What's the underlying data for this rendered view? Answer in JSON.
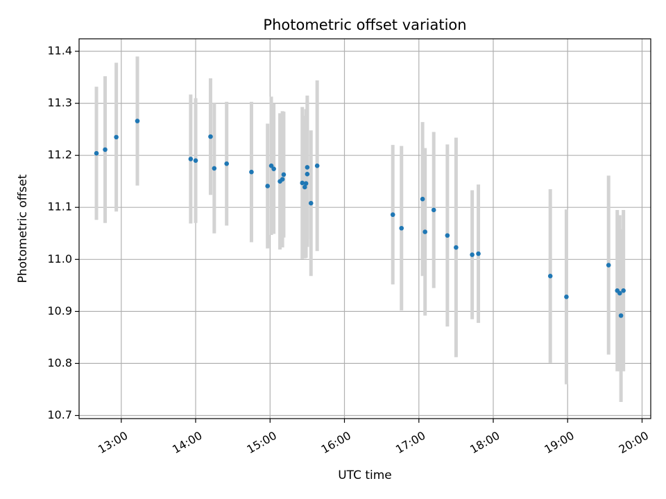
{
  "chart_data": {
    "type": "scatter",
    "title": "Photometric offset variation",
    "xlabel": "UTC time",
    "ylabel": "Photometric offset",
    "x_axis_kind": "time",
    "xlim": [
      "12:26",
      "20:07"
    ],
    "ylim": [
      10.694,
      11.424
    ],
    "grid": true,
    "xticks": [
      "13:00",
      "14:00",
      "15:00",
      "16:00",
      "17:00",
      "18:00",
      "19:00",
      "20:00"
    ],
    "yticks": [
      10.7,
      10.8,
      10.9,
      11.0,
      11.1,
      11.2,
      11.3,
      11.4
    ],
    "ytick_labels": [
      "10.7",
      "10.8",
      "10.9",
      "11.0",
      "11.1",
      "11.2",
      "11.3",
      "11.4"
    ],
    "colors": {
      "point": "#1f77b4",
      "errorbar": "#d3d3d3",
      "grid": "#b0b0b0"
    },
    "points": [
      {
        "x": "12:40",
        "y": 11.204,
        "err": 0.128
      },
      {
        "x": "12:47",
        "y": 11.211,
        "err": 0.141
      },
      {
        "x": "12:56",
        "y": 11.235,
        "err": 0.143
      },
      {
        "x": "13:13",
        "y": 11.266,
        "err": 0.124
      },
      {
        "x": "13:56",
        "y": 11.193,
        "err": 0.124
      },
      {
        "x": "14:00",
        "y": 11.19,
        "err": 0.12
      },
      {
        "x": "14:12",
        "y": 11.236,
        "err": 0.112
      },
      {
        "x": "14:15",
        "y": 11.175,
        "err": 0.125
      },
      {
        "x": "14:25",
        "y": 11.184,
        "err": 0.119
      },
      {
        "x": "14:45",
        "y": 11.168,
        "err": 0.135
      },
      {
        "x": "14:58",
        "y": 11.141,
        "err": 0.12
      },
      {
        "x": "15:01",
        "y": 11.18,
        "err": 0.133
      },
      {
        "x": "15:03",
        "y": 11.174,
        "err": 0.125
      },
      {
        "x": "15:08",
        "y": 11.15,
        "err": 0.131
      },
      {
        "x": "15:10",
        "y": 11.154,
        "err": 0.131
      },
      {
        "x": "15:11",
        "y": 11.163,
        "err": 0.121
      },
      {
        "x": "15:26",
        "y": 11.147,
        "err": 0.146
      },
      {
        "x": "15:28",
        "y": 11.139,
        "err": 0.137
      },
      {
        "x": "15:29",
        "y": 11.146,
        "err": 0.143
      },
      {
        "x": "15:30",
        "y": 11.177,
        "err": 0.138
      },
      {
        "x": "15:30",
        "y": 11.164,
        "err": 0.14
      },
      {
        "x": "15:33",
        "y": 11.108,
        "err": 0.14
      },
      {
        "x": "15:38",
        "y": 11.18,
        "err": 0.164
      },
      {
        "x": "16:39",
        "y": 11.086,
        "err": 0.134
      },
      {
        "x": "16:46",
        "y": 11.06,
        "err": 0.158
      },
      {
        "x": "17:03",
        "y": 11.116,
        "err": 0.148
      },
      {
        "x": "17:05",
        "y": 11.053,
        "err": 0.161
      },
      {
        "x": "17:12",
        "y": 11.095,
        "err": 0.15
      },
      {
        "x": "17:23",
        "y": 11.046,
        "err": 0.175
      },
      {
        "x": "17:30",
        "y": 11.023,
        "err": 0.211
      },
      {
        "x": "17:43",
        "y": 11.009,
        "err": 0.124
      },
      {
        "x": "17:48",
        "y": 11.011,
        "err": 0.133
      },
      {
        "x": "18:46",
        "y": 10.968,
        "err": 0.167
      },
      {
        "x": "18:59",
        "y": 10.928,
        "err": 0.168
      },
      {
        "x": "19:33",
        "y": 10.989,
        "err": 0.172
      },
      {
        "x": "19:40",
        "y": 10.94,
        "err": 0.155
      },
      {
        "x": "19:42",
        "y": 10.935,
        "err": 0.15
      },
      {
        "x": "19:43",
        "y": 10.892,
        "err": 0.166
      },
      {
        "x": "19:45",
        "y": 10.94,
        "err": 0.155
      }
    ]
  }
}
